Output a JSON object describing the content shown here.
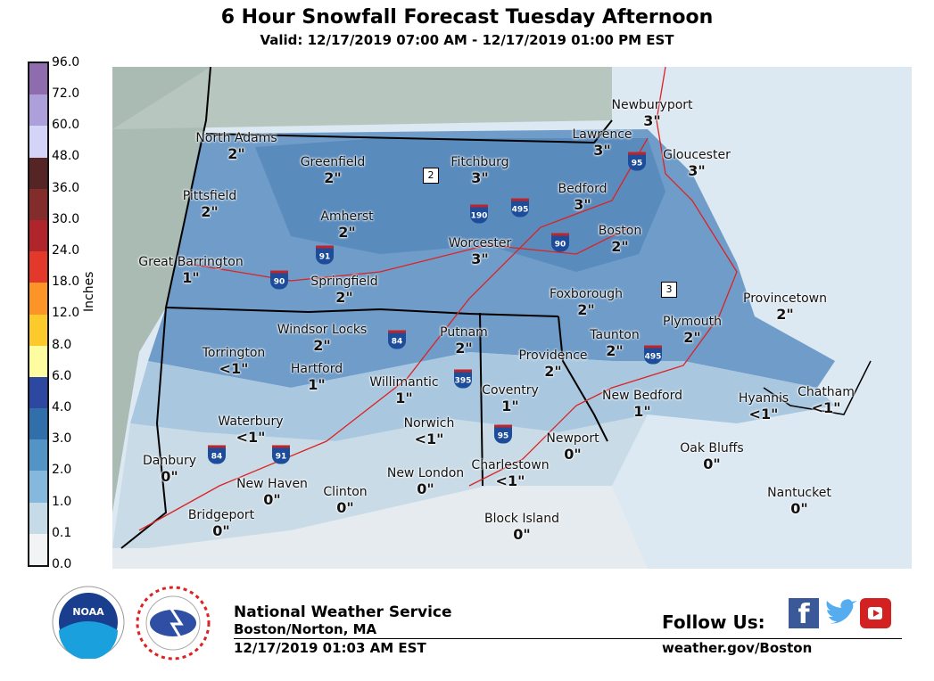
{
  "title": "6 Hour Snowfall Forecast Tuesday Afternoon",
  "subtitle": "Valid: 12/17/2019 07:00 AM - 12/17/2019 01:00 PM EST",
  "legend": {
    "unit": "Inches",
    "ticks": [
      "0.0",
      "0.1",
      "1.0",
      "2.0",
      "3.0",
      "4.0",
      "6.0",
      "8.0",
      "12.0",
      "18.0",
      "24.0",
      "30.0",
      "36.0",
      "48.0",
      "60.0",
      "72.0",
      "96.0"
    ],
    "colors": [
      "#f2f3f5",
      "#c5dbe8",
      "#84b8dc",
      "#5294c6",
      "#316faa",
      "#2d48a0",
      "#fefca0",
      "#fdca2c",
      "#fc9428",
      "#e2392b",
      "#b0252b",
      "#822c2c",
      "#552526",
      "#d4d4f8",
      "#ad9fd9",
      "#8f6cae"
    ]
  },
  "cities": [
    {
      "name": "North Adams",
      "value": "2\""
    },
    {
      "name": "Greenfield",
      "value": "2\""
    },
    {
      "name": "Fitchburg",
      "value": "3\""
    },
    {
      "name": "Lawrence",
      "value": "3\""
    },
    {
      "name": "Newburyport",
      "value": "3\""
    },
    {
      "name": "Gloucester",
      "value": "3\""
    },
    {
      "name": "Pittsfield",
      "value": "2\""
    },
    {
      "name": "Amherst",
      "value": "2\""
    },
    {
      "name": "Bedford",
      "value": "3\""
    },
    {
      "name": "Boston",
      "value": "2\""
    },
    {
      "name": "Worcester",
      "value": "3\""
    },
    {
      "name": "Great Barrington",
      "value": "1\""
    },
    {
      "name": "Springfield",
      "value": "2\""
    },
    {
      "name": "Foxborough",
      "value": "2\""
    },
    {
      "name": "Provincetown",
      "value": "2\""
    },
    {
      "name": "Plymouth",
      "value": "2\""
    },
    {
      "name": "Windsor Locks",
      "value": "2\""
    },
    {
      "name": "Putnam",
      "value": "2\""
    },
    {
      "name": "Taunton",
      "value": "2\""
    },
    {
      "name": "Torrington",
      "value": "<1\""
    },
    {
      "name": "Providence",
      "value": "2\""
    },
    {
      "name": "Hartford",
      "value": "1\""
    },
    {
      "name": "Willimantic",
      "value": "1\""
    },
    {
      "name": "Coventry",
      "value": "1\""
    },
    {
      "name": "New Bedford",
      "value": "1\""
    },
    {
      "name": "Hyannis",
      "value": "<1\""
    },
    {
      "name": "Chatham",
      "value": "<1\""
    },
    {
      "name": "Waterbury",
      "value": "<1\""
    },
    {
      "name": "Norwich",
      "value": "<1\""
    },
    {
      "name": "Newport",
      "value": "0\""
    },
    {
      "name": "Oak Bluffs",
      "value": "0\""
    },
    {
      "name": "Danbury",
      "value": "0\""
    },
    {
      "name": "Charlestown",
      "value": "<1\""
    },
    {
      "name": "New Haven",
      "value": "0\""
    },
    {
      "name": "New London",
      "value": "0\""
    },
    {
      "name": "Clinton",
      "value": "0\""
    },
    {
      "name": "Nantucket",
      "value": "0\""
    },
    {
      "name": "Bridgeport",
      "value": "0\""
    },
    {
      "name": "Block Island",
      "value": "0\""
    }
  ],
  "highways": [
    "2",
    "3",
    "190",
    "495",
    "90",
    "95",
    "91",
    "90",
    "84",
    "395",
    "495",
    "95",
    "84",
    "91"
  ],
  "footer": {
    "org": "National Weather Service",
    "office": "Boston/Norton, MA",
    "issued": "12/17/2019 01:03 AM EST",
    "follow": "Follow Us:",
    "url": "weather.gov/Boston",
    "social_icons": [
      "facebook-icon",
      "twitter-icon",
      "youtube-icon"
    ]
  }
}
